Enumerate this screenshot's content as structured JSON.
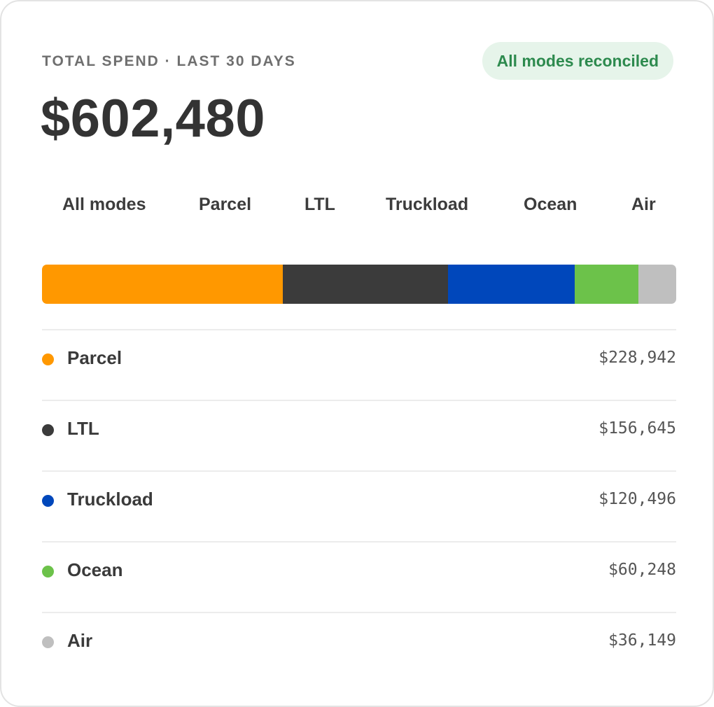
{
  "header": {
    "eyebrow": "TOTAL SPEND · LAST 30 DAYS",
    "status_badge": "All modes reconciled",
    "total": "$602,480"
  },
  "tabs": [
    {
      "label": "All modes"
    },
    {
      "label": "Parcel"
    },
    {
      "label": "LTL"
    },
    {
      "label": "Truckload"
    },
    {
      "label": "Ocean"
    },
    {
      "label": "Air"
    }
  ],
  "modes": [
    {
      "label": "Parcel",
      "amount": "$228,942",
      "value": 228942,
      "color": "#ff9800"
    },
    {
      "label": "LTL",
      "amount": "$156,645",
      "value": 156645,
      "color": "#3b3b3b"
    },
    {
      "label": "Truckload",
      "amount": "$120,496",
      "value": 120496,
      "color": "#0047bb"
    },
    {
      "label": "Ocean",
      "amount": "$60,248",
      "value": 60248,
      "color": "#6cc24a"
    },
    {
      "label": "Air",
      "amount": "$36,149",
      "value": 36149,
      "color": "#bfbfbf"
    }
  ]
}
